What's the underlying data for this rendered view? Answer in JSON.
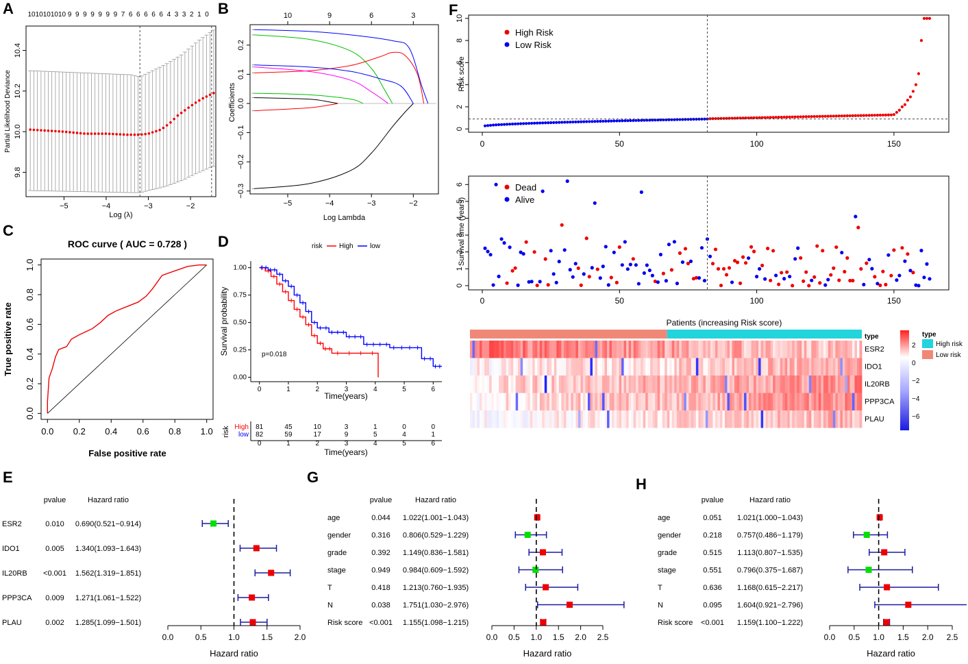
{
  "panel_labels": [
    "A",
    "B",
    "C",
    "D",
    "E",
    "F",
    "G",
    "H"
  ],
  "chart_data": [
    {
      "id": "A",
      "type": "scatter",
      "title": "",
      "xlabel": "Log (λ)",
      "ylabel": "Partial Likelihood Deviance",
      "xlim": [
        -5.9,
        -1.4
      ],
      "ylim": [
        9.68,
        10.52
      ],
      "xticks": [
        -5,
        -4,
        -3,
        -2
      ],
      "yticks": [
        9.8,
        10.0,
        10.2,
        10.4
      ],
      "top_ticks": [
        "10",
        "10",
        "10",
        "10",
        "10",
        "9",
        "9",
        "9",
        "9",
        "9",
        "9",
        "9",
        "7",
        "6",
        "6",
        "6",
        "6",
        "6",
        "4",
        "3",
        "3",
        "2",
        "1",
        "0"
      ],
      "vlines": [
        -3.2,
        -1.5
      ],
      "curve": [
        [
          -5.8,
          10.01
        ],
        [
          -5.0,
          10.0
        ],
        [
          -4.5,
          9.99
        ],
        [
          -4.0,
          9.99
        ],
        [
          -3.5,
          9.985
        ],
        [
          -3.2,
          9.985
        ],
        [
          -3.0,
          9.99
        ],
        [
          -2.7,
          10.01
        ],
        [
          -2.5,
          10.04
        ],
        [
          -2.3,
          10.08
        ],
        [
          -2.1,
          10.11
        ],
        [
          -1.9,
          10.14
        ],
        [
          -1.7,
          10.165
        ],
        [
          -1.45,
          10.19
        ]
      ],
      "band": [
        [
          -5.8,
          9.71,
          10.3
        ],
        [
          -3.4,
          9.7,
          10.28
        ],
        [
          -3.2,
          9.7,
          10.27
        ],
        [
          -3.0,
          9.71,
          10.29
        ],
        [
          -2.6,
          9.73,
          10.33
        ],
        [
          -2.2,
          9.76,
          10.38
        ],
        [
          -1.8,
          9.8,
          10.45
        ],
        [
          -1.45,
          9.83,
          10.5
        ]
      ]
    },
    {
      "id": "B",
      "type": "line",
      "title": "",
      "xlabel": "Log Lambda",
      "ylabel": "Coefficients",
      "xlim": [
        -5.9,
        -1.4
      ],
      "ylim": [
        -0.31,
        0.27
      ],
      "xticks": [
        -5,
        -4,
        -3,
        -2
      ],
      "yticks": [
        -0.3,
        -0.2,
        -0.1,
        0.0,
        0.1,
        0.2
      ],
      "top_ticks": [
        "10",
        "9",
        "6",
        "3"
      ],
      "top_tick_at": [
        -5.0,
        -4.0,
        -3.0,
        -2.0
      ],
      "series": [
        {
          "name": "g1",
          "color": "#0000ff",
          "points": [
            [
              -5.8,
              0.253
            ],
            [
              -4.5,
              0.247
            ],
            [
              -3.5,
              0.235
            ],
            [
              -2.5,
              0.215
            ],
            [
              -2.1,
              0.19
            ],
            [
              -1.8,
              0.06
            ],
            [
              -1.65,
              0.0
            ]
          ]
        },
        {
          "name": "g2",
          "color": "#00c000",
          "points": [
            [
              -5.8,
              0.235
            ],
            [
              -4.5,
              0.22
            ],
            [
              -3.5,
              0.18
            ],
            [
              -3.0,
              0.12
            ],
            [
              -2.7,
              0.05
            ],
            [
              -2.5,
              0.0
            ]
          ]
        },
        {
          "name": "g3",
          "color": "#ff0000",
          "points": [
            [
              -5.8,
              0.105
            ],
            [
              -4.5,
              0.112
            ],
            [
              -3.5,
              0.13
            ],
            [
              -2.8,
              0.16
            ],
            [
              -2.5,
              0.175
            ],
            [
              -2.2,
              0.165
            ],
            [
              -1.9,
              0.1
            ],
            [
              -1.75,
              0.0
            ]
          ]
        },
        {
          "name": "g4",
          "color": "#0000ff",
          "points": [
            [
              -5.8,
              0.132
            ],
            [
              -4.5,
              0.125
            ],
            [
              -3.5,
              0.11
            ],
            [
              -2.8,
              0.085
            ],
            [
              -2.3,
              0.06
            ],
            [
              -2.0,
              0.0
            ]
          ]
        },
        {
          "name": "g5",
          "color": "#ff00ff",
          "points": [
            [
              -5.8,
              0.125
            ],
            [
              -4.5,
              0.11
            ],
            [
              -3.5,
              0.08
            ],
            [
              -3.0,
              0.04
            ],
            [
              -2.6,
              0.0
            ]
          ]
        },
        {
          "name": "g6",
          "color": "#00c000",
          "points": [
            [
              -5.8,
              0.035
            ],
            [
              -4.5,
              0.03
            ],
            [
              -3.5,
              0.015
            ],
            [
              -3.2,
              0.0
            ]
          ]
        },
        {
          "name": "g7",
          "color": "#000000",
          "points": [
            [
              -5.8,
              0.02
            ],
            [
              -4.5,
              0.015
            ],
            [
              -4.0,
              0.005
            ],
            [
              -3.8,
              0.0
            ]
          ]
        },
        {
          "name": "g8",
          "color": "#ff0000",
          "points": [
            [
              -5.8,
              -0.025
            ],
            [
              -4.5,
              -0.015
            ],
            [
              -4.0,
              -0.005
            ],
            [
              -3.8,
              0.0
            ]
          ]
        },
        {
          "name": "g9",
          "color": "#000000",
          "points": [
            [
              -5.8,
              -0.292
            ],
            [
              -4.5,
              -0.275
            ],
            [
              -3.5,
              -0.23
            ],
            [
              -3.0,
              -0.17
            ],
            [
              -2.5,
              -0.08
            ],
            [
              -2.2,
              -0.03
            ],
            [
              -2.0,
              0.0
            ]
          ]
        }
      ]
    },
    {
      "id": "C",
      "type": "line",
      "title": "ROC curve ( AUC =  0.728 )",
      "xlabel": "False positive rate",
      "ylabel": "True positive rate",
      "xlim": [
        0,
        1
      ],
      "ylim": [
        0,
        1
      ],
      "xticks": [
        "0.0",
        "0.2",
        "0.4",
        "0.6",
        "0.8",
        "1.0"
      ],
      "yticks": [
        "0.0",
        "0.2",
        "0.4",
        "0.6",
        "0.8",
        "1.0"
      ],
      "roc": [
        [
          0,
          0
        ],
        [
          0,
          0.08
        ],
        [
          0.01,
          0.24
        ],
        [
          0.03,
          0.3
        ],
        [
          0.05,
          0.38
        ],
        [
          0.07,
          0.43
        ],
        [
          0.12,
          0.45
        ],
        [
          0.15,
          0.5
        ],
        [
          0.2,
          0.53
        ],
        [
          0.24,
          0.55
        ],
        [
          0.28,
          0.57
        ],
        [
          0.33,
          0.61
        ],
        [
          0.38,
          0.66
        ],
        [
          0.43,
          0.69
        ],
        [
          0.5,
          0.72
        ],
        [
          0.57,
          0.75
        ],
        [
          0.62,
          0.79
        ],
        [
          0.66,
          0.84
        ],
        [
          0.72,
          0.93
        ],
        [
          0.8,
          0.96
        ],
        [
          0.88,
          0.99
        ],
        [
          0.95,
          1.0
        ],
        [
          1,
          1
        ]
      ]
    },
    {
      "id": "D",
      "type": "line",
      "title": "",
      "xlabel": "Time(years)",
      "ylabel": "Survival probability",
      "xlim": [
        -0.3,
        6.3
      ],
      "ylim": [
        -0.04,
        1.06
      ],
      "xticks": [
        0,
        1,
        2,
        3,
        4,
        5,
        6
      ],
      "yticks": [
        "0.00",
        "0.25",
        "0.50",
        "0.75",
        "1.00"
      ],
      "legend_title": "risk",
      "legend": [
        "High",
        "low"
      ],
      "pvalue": "p=0.018",
      "series": [
        {
          "name": "High",
          "color": "#ff0000",
          "steps": [
            [
              0,
              1.0
            ],
            [
              0.2,
              0.97
            ],
            [
              0.4,
              0.92
            ],
            [
              0.6,
              0.85
            ],
            [
              0.8,
              0.78
            ],
            [
              1.0,
              0.7
            ],
            [
              1.2,
              0.62
            ],
            [
              1.4,
              0.55
            ],
            [
              1.6,
              0.48
            ],
            [
              1.8,
              0.38
            ],
            [
              2.0,
              0.31
            ],
            [
              2.2,
              0.26
            ],
            [
              2.5,
              0.22
            ],
            [
              4.1,
              0.22
            ],
            [
              4.1,
              0.0
            ]
          ]
        },
        {
          "name": "low",
          "color": "#0000ff",
          "steps": [
            [
              0,
              1.0
            ],
            [
              0.3,
              0.98
            ],
            [
              0.6,
              0.94
            ],
            [
              0.8,
              0.88
            ],
            [
              1.0,
              0.83
            ],
            [
              1.2,
              0.75
            ],
            [
              1.4,
              0.68
            ],
            [
              1.6,
              0.6
            ],
            [
              1.8,
              0.5
            ],
            [
              2.0,
              0.45
            ],
            [
              2.4,
              0.41
            ],
            [
              3.0,
              0.37
            ],
            [
              3.6,
              0.3
            ],
            [
              4.5,
              0.27
            ],
            [
              5.6,
              0.17
            ],
            [
              6.0,
              0.1
            ],
            [
              6.3,
              0.1
            ]
          ]
        }
      ],
      "risk_table": {
        "label": "risk",
        "rows": [
          {
            "name": "High",
            "color": "#ff0000",
            "values": [
              "81",
              "45",
              "10",
              "3",
              "1",
              "0",
              "0"
            ]
          },
          {
            "name": "low",
            "color": "#0000ff",
            "values": [
              "82",
              "59",
              "17",
              "9",
              "5",
              "4",
              "1"
            ]
          }
        ],
        "xlabel": "Time(years)"
      }
    },
    {
      "id": "E",
      "type": "table",
      "title": "",
      "col_headers": [
        "pvalue",
        "Hazard ratio"
      ],
      "xlabel": "Hazard ratio",
      "xlim": [
        0,
        2.0
      ],
      "xticks": [
        "0.0",
        "0.5",
        "1.0",
        "1.5",
        "2.0"
      ],
      "rows": [
        {
          "name": "ESR2",
          "pvalue": "0.010",
          "hr_text": "0.690(0.521−0.914)",
          "hr": 0.69,
          "lo": 0.521,
          "hi": 0.914,
          "color": "#00e000"
        },
        {
          "name": "IDO1",
          "pvalue": "0.005",
          "hr_text": "1.340(1.093−1.643)",
          "hr": 1.34,
          "lo": 1.093,
          "hi": 1.643,
          "color": "#ee0000"
        },
        {
          "name": "IL20RB",
          "pvalue": "<0.001",
          "hr_text": "1.562(1.319−1.851)",
          "hr": 1.562,
          "lo": 1.319,
          "hi": 1.851,
          "color": "#ee0000"
        },
        {
          "name": "PPP3CA",
          "pvalue": "0.009",
          "hr_text": "1.271(1.061−1.522)",
          "hr": 1.271,
          "lo": 1.061,
          "hi": 1.522,
          "color": "#ee0000"
        },
        {
          "name": "PLAU",
          "pvalue": "0.002",
          "hr_text": "1.285(1.099−1.501)",
          "hr": 1.285,
          "lo": 1.099,
          "hi": 1.501,
          "color": "#ee0000"
        }
      ]
    },
    {
      "id": "F1",
      "type": "scatter",
      "title": "",
      "xlabel": "",
      "ylabel": "Risk score",
      "xlim": [
        -5,
        170
      ],
      "ylim": [
        -0.3,
        10.3
      ],
      "xticks": [
        0,
        50,
        100,
        150
      ],
      "yticks": [
        0,
        2,
        4,
        6,
        8,
        10
      ],
      "legend": [
        "High Risk",
        "Low  Risk"
      ],
      "cutoff_index": 82,
      "cutoff_value": 0.9,
      "n": 163,
      "tail_values": [
        1.3,
        1.5,
        1.7,
        2.0,
        2.2,
        2.6,
        2.9,
        3.4,
        4.0,
        5.0,
        8.0,
        10.0,
        10.0,
        10.0
      ]
    },
    {
      "id": "F2",
      "type": "scatter",
      "title": "",
      "xlabel": "Patients (increasing Risk score)",
      "ylabel": "Survival time (years)",
      "xlim": [
        -5,
        170
      ],
      "ylim": [
        -0.25,
        6.5
      ],
      "xticks": [
        0,
        50,
        100,
        150
      ],
      "yticks": [
        0,
        1,
        2,
        3,
        4,
        5,
        6
      ],
      "legend": [
        "Dead",
        "Alive"
      ],
      "cutoff_index": 82
    },
    {
      "id": "F3",
      "type": "heatmap",
      "title": "",
      "type_label": "type",
      "rows": [
        "ESR2",
        "IDO1",
        "IL20RB",
        "PPP3CA",
        "PLAU"
      ],
      "legend_title": "type",
      "legend": [
        "High risk",
        "Low  risk"
      ],
      "scale_ticks": [
        "2",
        "0",
        "−2",
        "−4",
        "−6"
      ],
      "low_color": "#f08878",
      "high_color": "#22d4dc"
    },
    {
      "id": "G",
      "type": "table",
      "title": "",
      "col_headers": [
        "pvalue",
        "Hazard ratio"
      ],
      "xlabel": "Hazard ratio",
      "xlim": [
        0,
        2.5
      ],
      "xticks": [
        "0.0",
        "0.5",
        "1.0",
        "1.5",
        "2.0",
        "2.5"
      ],
      "rows": [
        {
          "name": "age",
          "pvalue": "0.044",
          "hr_text": "1.022(1.001−1.043)",
          "hr": 1.022,
          "lo": 1.001,
          "hi": 1.043,
          "color": "#ee0000"
        },
        {
          "name": "gender",
          "pvalue": "0.316",
          "hr_text": "0.806(0.529−1.229)",
          "hr": 0.806,
          "lo": 0.529,
          "hi": 1.229,
          "color": "#00e000"
        },
        {
          "name": "grade",
          "pvalue": "0.392",
          "hr_text": "1.149(0.836−1.581)",
          "hr": 1.149,
          "lo": 0.836,
          "hi": 1.581,
          "color": "#ee0000"
        },
        {
          "name": "stage",
          "pvalue": "0.949",
          "hr_text": "0.984(0.609−1.592)",
          "hr": 0.984,
          "lo": 0.609,
          "hi": 1.592,
          "color": "#00e000"
        },
        {
          "name": "T",
          "pvalue": "0.418",
          "hr_text": "1.213(0.760−1.935)",
          "hr": 1.213,
          "lo": 0.76,
          "hi": 1.935,
          "color": "#ee0000"
        },
        {
          "name": "N",
          "pvalue": "0.038",
          "hr_text": "1.751(1.030−2.976)",
          "hr": 1.751,
          "lo": 1.03,
          "hi": 2.976,
          "color": "#ee0000"
        },
        {
          "name": "Risk score",
          "pvalue": "<0.001",
          "hr_text": "1.155(1.098−1.215)",
          "hr": 1.155,
          "lo": 1.098,
          "hi": 1.215,
          "color": "#ee0000"
        }
      ]
    },
    {
      "id": "H",
      "type": "table",
      "title": "",
      "col_headers": [
        "pvalue",
        "Hazard ratio"
      ],
      "xlabel": "Hazard ratio",
      "xlim": [
        0,
        2.5
      ],
      "xticks": [
        "0.0",
        "0.5",
        "1.0",
        "1.5",
        "2.0",
        "2.5"
      ],
      "rows": [
        {
          "name": "age",
          "pvalue": "0.051",
          "hr_text": "1.021(1.000−1.043)",
          "hr": 1.021,
          "lo": 1.0,
          "hi": 1.043,
          "color": "#ee0000"
        },
        {
          "name": "gender",
          "pvalue": "0.218",
          "hr_text": "0.757(0.486−1.179)",
          "hr": 0.757,
          "lo": 0.486,
          "hi": 1.179,
          "color": "#00e000"
        },
        {
          "name": "grade",
          "pvalue": "0.515",
          "hr_text": "1.113(0.807−1.535)",
          "hr": 1.113,
          "lo": 0.807,
          "hi": 1.535,
          "color": "#ee0000"
        },
        {
          "name": "stage",
          "pvalue": "0.551",
          "hr_text": "0.796(0.375−1.687)",
          "hr": 0.796,
          "lo": 0.375,
          "hi": 1.687,
          "color": "#00e000"
        },
        {
          "name": "T",
          "pvalue": "0.636",
          "hr_text": "1.168(0.615−2.217)",
          "hr": 1.168,
          "lo": 0.615,
          "hi": 2.217,
          "color": "#ee0000"
        },
        {
          "name": "N",
          "pvalue": "0.095",
          "hr_text": "1.604(0.921−2.796)",
          "hr": 1.604,
          "lo": 0.921,
          "hi": 2.796,
          "color": "#ee0000"
        },
        {
          "name": "Risk score",
          "pvalue": "<0.001",
          "hr_text": "1.159(1.100−1.222)",
          "hr": 1.159,
          "lo": 1.1,
          "hi": 1.222,
          "color": "#ee0000"
        }
      ]
    }
  ]
}
